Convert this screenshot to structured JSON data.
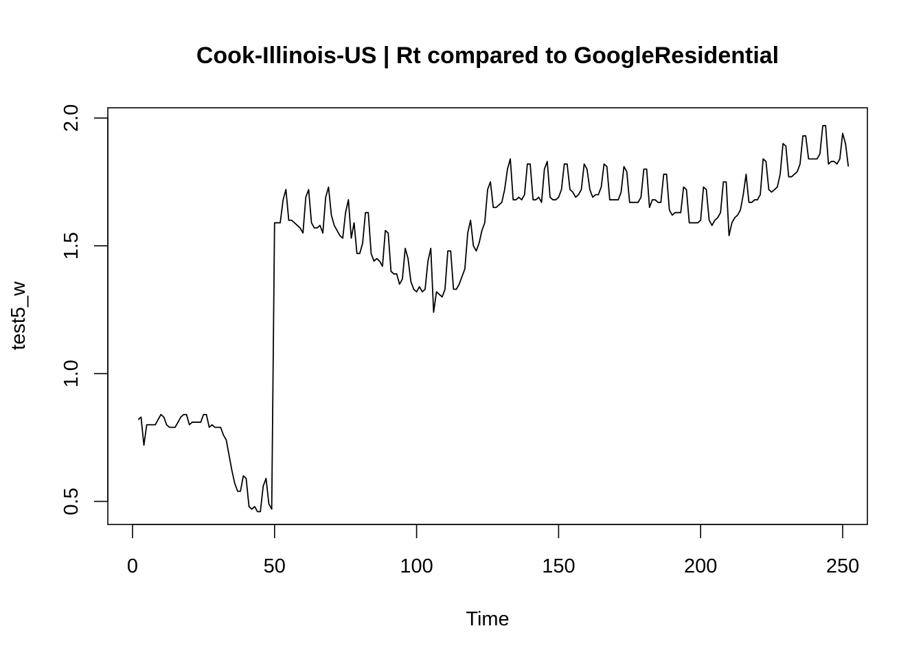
{
  "chart_data": {
    "type": "line",
    "title": "Cook-Illinois-US | Rt compared to GoogleResidential",
    "xlabel": "Time",
    "ylabel": "test5_w",
    "xlim": [
      -8.7,
      258.7
    ],
    "ylim": [
      0.41,
      2.04
    ],
    "x_ticks": [
      0,
      50,
      100,
      150,
      200,
      250
    ],
    "y_ticks": [
      0.5,
      1.0,
      1.5,
      2.0
    ],
    "x_tick_labels": [
      "0",
      "50",
      "100",
      "150",
      "200",
      "250"
    ],
    "y_tick_labels": [
      "0.5",
      "1.0",
      "1.5",
      "2.0"
    ],
    "grid": false,
    "legend": "none",
    "colors": {
      "line": "#000000"
    },
    "series": [
      {
        "x_start": 2,
        "x_step": 1,
        "values": [
          0.82,
          0.83,
          0.72,
          0.8,
          0.8,
          0.8,
          0.8,
          0.82,
          0.84,
          0.83,
          0.8,
          0.79,
          0.79,
          0.79,
          0.81,
          0.83,
          0.84,
          0.84,
          0.8,
          0.81,
          0.81,
          0.81,
          0.81,
          0.84,
          0.84,
          0.79,
          0.8,
          0.79,
          0.79,
          0.79,
          0.76,
          0.74,
          0.68,
          0.62,
          0.57,
          0.54,
          0.54,
          0.6,
          0.59,
          0.48,
          0.47,
          0.48,
          0.46,
          0.46,
          0.56,
          0.59,
          0.49,
          0.47,
          1.59,
          1.59,
          1.59,
          1.68,
          1.72,
          1.6,
          1.6,
          1.59,
          1.58,
          1.57,
          1.55,
          1.69,
          1.72,
          1.59,
          1.57,
          1.57,
          1.58,
          1.55,
          1.69,
          1.73,
          1.62,
          1.58,
          1.56,
          1.54,
          1.53,
          1.63,
          1.68,
          1.53,
          1.59,
          1.47,
          1.47,
          1.51,
          1.63,
          1.63,
          1.47,
          1.44,
          1.45,
          1.44,
          1.42,
          1.56,
          1.55,
          1.4,
          1.39,
          1.39,
          1.35,
          1.37,
          1.49,
          1.45,
          1.36,
          1.33,
          1.32,
          1.34,
          1.32,
          1.33,
          1.44,
          1.49,
          1.24,
          1.32,
          1.31,
          1.3,
          1.33,
          1.48,
          1.48,
          1.33,
          1.33,
          1.35,
          1.38,
          1.41,
          1.55,
          1.6,
          1.5,
          1.48,
          1.51,
          1.56,
          1.59,
          1.72,
          1.75,
          1.65,
          1.65,
          1.66,
          1.67,
          1.72,
          1.8,
          1.84,
          1.68,
          1.68,
          1.69,
          1.68,
          1.7,
          1.82,
          1.82,
          1.68,
          1.68,
          1.69,
          1.67,
          1.8,
          1.83,
          1.69,
          1.68,
          1.68,
          1.69,
          1.72,
          1.82,
          1.82,
          1.72,
          1.71,
          1.69,
          1.7,
          1.72,
          1.82,
          1.8,
          1.72,
          1.69,
          1.7,
          1.7,
          1.73,
          1.82,
          1.81,
          1.68,
          1.68,
          1.68,
          1.68,
          1.71,
          1.81,
          1.79,
          1.67,
          1.67,
          1.67,
          1.67,
          1.69,
          1.8,
          1.8,
          1.65,
          1.68,
          1.68,
          1.67,
          1.67,
          1.78,
          1.78,
          1.64,
          1.62,
          1.63,
          1.63,
          1.63,
          1.73,
          1.72,
          1.59,
          1.59,
          1.59,
          1.59,
          1.6,
          1.73,
          1.72,
          1.6,
          1.58,
          1.6,
          1.61,
          1.63,
          1.75,
          1.75,
          1.54,
          1.59,
          1.61,
          1.62,
          1.64,
          1.7,
          1.78,
          1.67,
          1.67,
          1.68,
          1.68,
          1.7,
          1.84,
          1.83,
          1.72,
          1.71,
          1.72,
          1.73,
          1.78,
          1.9,
          1.89,
          1.77,
          1.77,
          1.78,
          1.79,
          1.82,
          1.93,
          1.93,
          1.84,
          1.84,
          1.84,
          1.84,
          1.86,
          1.97,
          1.97,
          1.82,
          1.83,
          1.83,
          1.82,
          1.84,
          1.94,
          1.9,
          1.81
        ]
      }
    ]
  }
}
